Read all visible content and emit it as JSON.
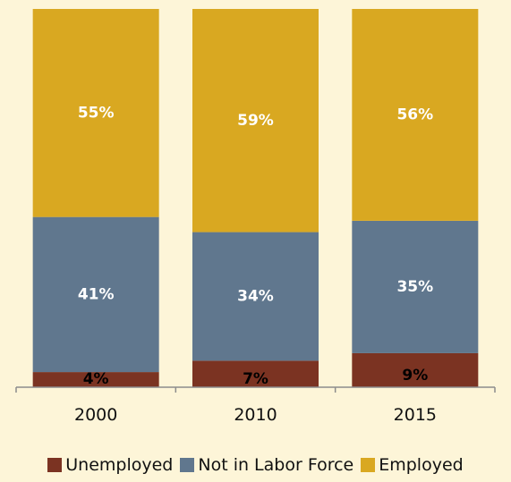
{
  "colors": {
    "background": "#fdf5d8",
    "unemployed": "#7b3322",
    "not_in_labor_force": "#60778e",
    "employed": "#d9a821",
    "axis": "#8c8c8c",
    "label_light": "#ffffff",
    "label_dark": "#000000"
  },
  "chart_data": {
    "type": "bar",
    "stacked": true,
    "categories": [
      "2000",
      "2010",
      "2015"
    ],
    "series": [
      {
        "name": "Unemployed",
        "values": [
          4,
          7,
          9
        ],
        "labels": [
          "4%",
          "7%",
          "9%"
        ],
        "color": "#7b3322"
      },
      {
        "name": "Not in Labor Force",
        "values": [
          41,
          34,
          35
        ],
        "labels": [
          "41%",
          "34%",
          "35%"
        ],
        "color": "#60778e"
      },
      {
        "name": "Employed",
        "values": [
          55,
          59,
          56
        ],
        "labels": [
          "55%",
          "59%",
          "56%"
        ],
        "color": "#d9a821"
      }
    ],
    "ylim": [
      0,
      100
    ],
    "grid": false,
    "legend_position": "bottom"
  },
  "legend": {
    "items": [
      {
        "label": "Unemployed",
        "color": "#7b3322"
      },
      {
        "label": "Not in Labor Force",
        "color": "#60778e"
      },
      {
        "label": "Employed",
        "color": "#d9a821"
      }
    ]
  }
}
